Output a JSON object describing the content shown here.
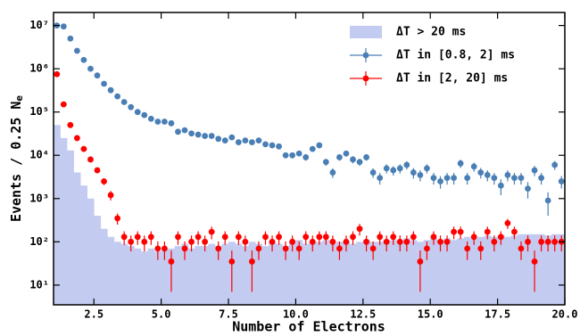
{
  "chart_data": {
    "type": "histogram-errorbar",
    "xlabel": "Number of Electrons",
    "ylabel": "Events / 0.25 N",
    "ylabel_subscript": "e",
    "xlim": [
      1,
      20
    ],
    "ylim": [
      3.5,
      20000000
    ],
    "log_y": true,
    "legend": "upper right",
    "xticks": [
      2.5,
      {
        "value": 5,
        "label": "5.0"
      },
      7.5,
      {
        "value": 10,
        "label": "10.0"
      },
      12.5,
      {
        "value": 15,
        "label": "15.0"
      },
      17.5,
      {
        "value": 20,
        "label": "20.0"
      }
    ],
    "yticks": [
      {
        "value": 10,
        "label": "10¹"
      },
      {
        "value": 100,
        "label": "10²"
      },
      {
        "value": 1000,
        "label": "10³"
      },
      {
        "value": 10000,
        "label": "10⁴"
      },
      {
        "value": 100000,
        "label": "10⁵"
      },
      {
        "value": 1000000,
        "label": "10⁶"
      },
      {
        "value": 10000000,
        "label": "10⁷"
      }
    ],
    "histogram": {
      "name": "ΔT > 20 ms",
      "color": "#c3cbf1",
      "bins": [
        1.0,
        1.25,
        1.5,
        1.75,
        2.0,
        2.25,
        2.5,
        2.75,
        3.0,
        3.25,
        3.5,
        3.75,
        4.0,
        4.25,
        4.5,
        4.75,
        5.0,
        5.25,
        5.5,
        5.75,
        6.0,
        6.25,
        6.5,
        6.75,
        7.0,
        7.25,
        7.5,
        7.75,
        8.0,
        8.25,
        8.5,
        8.75,
        9.0,
        9.25,
        9.5,
        9.75,
        10.0,
        10.25,
        10.5,
        10.75,
        11.0,
        11.25,
        11.5,
        11.75,
        12.0,
        12.25,
        12.5,
        12.75,
        13.0,
        13.25,
        13.5,
        13.75,
        14.0,
        14.25,
        14.5,
        14.75,
        15.0,
        15.25,
        15.5,
        15.75,
        16.0,
        16.25,
        16.5,
        16.75,
        17.0,
        17.25,
        17.5,
        17.75,
        18.0,
        18.25,
        18.5,
        18.75,
        19.0,
        19.25,
        19.5,
        19.75,
        20.0
      ],
      "counts": [
        50000,
        25000,
        13000,
        4000,
        2000,
        1000,
        400,
        200,
        130,
        100,
        90,
        80,
        70,
        60,
        70,
        60,
        70,
        70,
        80,
        90,
        70,
        80,
        80,
        90,
        80,
        90,
        100,
        90,
        80,
        100,
        90,
        80,
        100,
        90,
        80,
        100,
        110,
        90,
        100,
        100,
        110,
        90,
        100,
        100,
        90,
        100,
        110,
        100,
        100,
        110,
        110,
        100,
        120,
        110,
        100,
        110,
        120,
        110,
        120,
        110,
        120,
        130,
        120,
        130,
        140,
        130,
        140,
        130,
        140,
        150,
        150,
        150,
        150,
        140,
        150,
        150
      ]
    },
    "x": [
      1.125,
      1.375,
      1.625,
      1.875,
      2.125,
      2.375,
      2.625,
      2.875,
      3.125,
      3.375,
      3.625,
      3.875,
      4.125,
      4.375,
      4.625,
      4.875,
      5.125,
      5.375,
      5.625,
      5.875,
      6.125,
      6.375,
      6.625,
      6.875,
      7.125,
      7.375,
      7.625,
      7.875,
      8.125,
      8.375,
      8.625,
      8.875,
      9.125,
      9.375,
      9.625,
      9.875,
      10.125,
      10.375,
      10.625,
      10.875,
      11.125,
      11.375,
      11.625,
      11.875,
      12.125,
      12.375,
      12.625,
      12.875,
      13.125,
      13.375,
      13.625,
      13.875,
      14.125,
      14.375,
      14.625,
      14.875,
      15.125,
      15.375,
      15.625,
      15.875,
      16.125,
      16.375,
      16.625,
      16.875,
      17.125,
      17.375,
      17.625,
      17.875,
      18.125,
      18.375,
      18.625,
      18.875,
      19.125,
      19.375,
      19.625,
      19.875
    ],
    "series": [
      {
        "name": "ΔT in [0.8, 2] ms",
        "color": "#4a7fb5",
        "values": [
          10000000,
          9500000,
          5000000,
          2600000,
          1600000,
          1000000,
          700000,
          450000,
          320000,
          230000,
          170000,
          130000,
          100000,
          85000,
          70000,
          60000,
          60000,
          55000,
          35000,
          38000,
          32000,
          30000,
          28000,
          28000,
          24000,
          22000,
          26000,
          20000,
          22000,
          20000,
          22000,
          18000,
          17000,
          16000,
          10000,
          10000,
          11000,
          9000,
          14000,
          17000,
          7000,
          4000,
          9000,
          11000,
          8000,
          7000,
          9000,
          4000,
          3000,
          5000,
          4500,
          5000,
          6000,
          4000,
          3500,
          5000,
          3000,
          2500,
          3000,
          3000,
          6500,
          3000,
          5500,
          4000,
          3500,
          3000,
          2000,
          3500,
          3000,
          3000,
          1700,
          4500,
          3000,
          900,
          6000,
          2500
        ],
        "errors": [
          100000,
          100000,
          60000,
          40000,
          30000,
          20000,
          15000,
          10000,
          8000,
          6000,
          5000,
          4000,
          3500,
          3000,
          3000,
          2500,
          2500,
          2500,
          2000,
          2000,
          2000,
          2000,
          2000,
          2000,
          2000,
          2000,
          2000,
          2000,
          2000,
          2000,
          2000,
          2000,
          2000,
          2000,
          1500,
          1500,
          1500,
          1500,
          1800,
          2000,
          1300,
          1000,
          1500,
          1700,
          1500,
          1300,
          1500,
          1000,
          900,
          1200,
          1100,
          1200,
          1300,
          1100,
          1000,
          1200,
          900,
          800,
          900,
          900,
          1400,
          900,
          1300,
          1100,
          1000,
          900,
          800,
          1000,
          900,
          900,
          700,
          1200,
          900,
          500,
          1400,
          800
        ]
      },
      {
        "name": "ΔT in [2, 20] ms",
        "color": "#ff0000",
        "values": [
          750000,
          150000,
          50000,
          25000,
          14000,
          8000,
          4500,
          2500,
          1200,
          350,
          130,
          100,
          130,
          100,
          130,
          70,
          70,
          35,
          130,
          70,
          100,
          130,
          100,
          170,
          70,
          130,
          35,
          130,
          100,
          35,
          70,
          130,
          100,
          130,
          70,
          100,
          70,
          130,
          100,
          130,
          130,
          100,
          70,
          100,
          130,
          200,
          100,
          70,
          130,
          100,
          130,
          100,
          100,
          130,
          35,
          70,
          130,
          100,
          100,
          170,
          170,
          70,
          130,
          70,
          170,
          100,
          130,
          270,
          170,
          70,
          100,
          35,
          100,
          100,
          100,
          100
        ],
        "errors": [
          10000,
          4000,
          2000,
          1500,
          1000,
          800,
          600,
          450,
          300,
          100,
          45,
          40,
          45,
          40,
          45,
          32,
          32,
          28,
          45,
          32,
          40,
          45,
          40,
          55,
          32,
          45,
          28,
          45,
          40,
          28,
          32,
          45,
          40,
          45,
          32,
          40,
          32,
          45,
          40,
          45,
          45,
          40,
          32,
          40,
          45,
          60,
          40,
          32,
          45,
          40,
          45,
          40,
          40,
          45,
          28,
          32,
          45,
          40,
          40,
          55,
          55,
          32,
          45,
          32,
          55,
          40,
          45,
          70,
          55,
          32,
          40,
          28,
          40,
          40,
          40,
          40
        ]
      }
    ]
  }
}
